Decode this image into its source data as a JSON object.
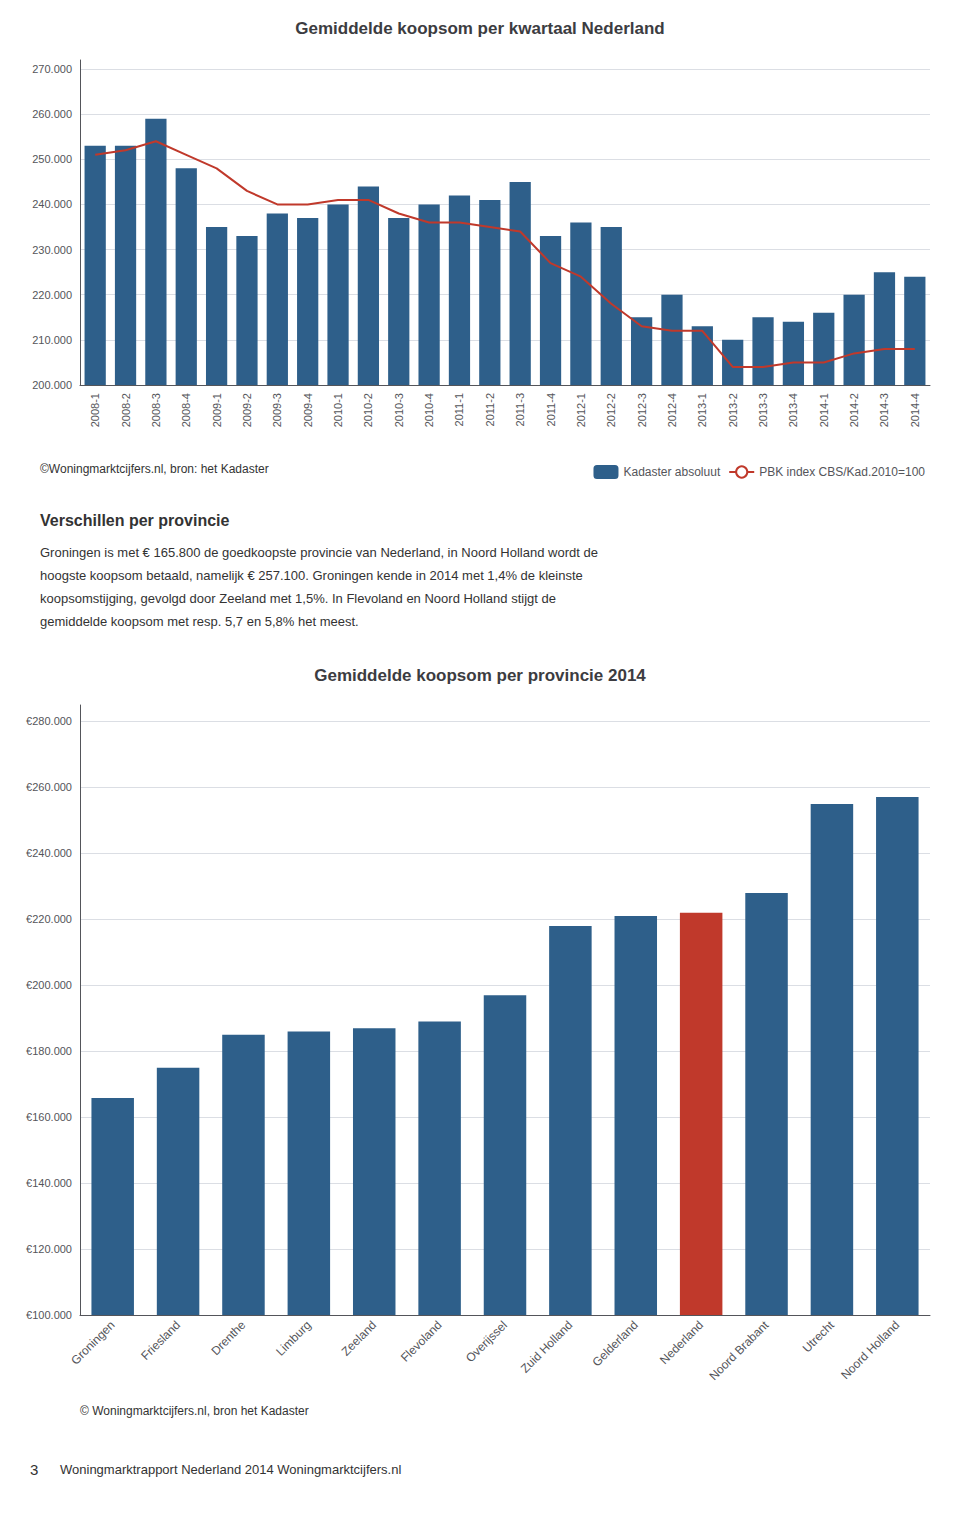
{
  "chart_data": [
    {
      "type": "bar",
      "title": "Gemiddelde koopsom per kwartaal Nederland",
      "categories": [
        "2008-1",
        "2008-2",
        "2008-3",
        "2008-4",
        "2009-1",
        "2009-2",
        "2009-3",
        "2009-4",
        "2010-1",
        "2010-2",
        "2010-3",
        "2010-4",
        "2011-1",
        "2011-2",
        "2011-3",
        "2011-4",
        "2012-1",
        "2012-2",
        "2012-3",
        "2012-4",
        "2013-1",
        "2013-2",
        "2013-3",
        "2013-4",
        "2014-1",
        "2014-2",
        "2014-3",
        "2014-4"
      ],
      "series": [
        {
          "name": "Kadaster absoluut",
          "type": "bar",
          "color": "#2E5F8A",
          "values": [
            253000,
            253000,
            259000,
            248000,
            235000,
            233000,
            238000,
            237000,
            240000,
            244000,
            237000,
            240000,
            242000,
            241000,
            245000,
            233000,
            236000,
            235000,
            215000,
            220000,
            213000,
            210000,
            215000,
            214000,
            216000,
            220000,
            225000,
            224000
          ]
        },
        {
          "name": "PBK index CBS/Kad.2010=100",
          "type": "line",
          "color": "#C0392B",
          "values": [
            251000,
            252000,
            254000,
            251000,
            248000,
            243000,
            240000,
            240000,
            241000,
            241000,
            238000,
            236000,
            236000,
            235000,
            234000,
            227000,
            224000,
            218000,
            213000,
            212000,
            212000,
            204000,
            204000,
            205000,
            205000,
            207000,
            208000,
            208000
          ]
        }
      ],
      "ylim": [
        200000,
        272000
      ],
      "yticks": [
        {
          "value": 200000,
          "label": "200.000"
        },
        {
          "value": 210000,
          "label": "210.000"
        },
        {
          "value": 220000,
          "label": "220.000"
        },
        {
          "value": 230000,
          "label": "230.000"
        },
        {
          "value": 240000,
          "label": "240.000"
        },
        {
          "value": 250000,
          "label": "250.000"
        },
        {
          "value": 260000,
          "label": "260.000"
        },
        {
          "value": 270000,
          "label": "270.000"
        }
      ],
      "grid": true,
      "legend": "right",
      "annotations": [
        "©Woningmarktcijfers.nl, bron: het Kadaster",
        "Verschillen per provincie",
        "Groningen is met € 165.800 de goedkoopste provincie van Nederland, in Noord Holland wordt de",
        "hoogste koopsom betaald, namelijk € 257.100. Groningen kende in 2014 met 1,4% de kleinste",
        "koopsomstijging, gevolgd door Zeeland met 1,5%. In Flevoland en Noord Holland stijgt de",
        "gemiddelde koopsom met resp. 5,7 en 5,8% het meest."
      ]
    },
    {
      "type": "bar",
      "title": "Gemiddelde koopsom per provincie 2014",
      "categories": [
        "Groningen",
        "Friesland",
        "Drenthe",
        "Limburg",
        "Zeeland",
        "Flevoland",
        "Overijssel",
        "Zuid Holland",
        "Gelderland",
        "Nederland",
        "Noord Brabant",
        "Utrecht",
        "Noord Holland"
      ],
      "values": [
        165800,
        175000,
        185000,
        186000,
        187000,
        189000,
        197000,
        218000,
        221000,
        222000,
        228000,
        255000,
        257100
      ],
      "colors": [
        "#2E5F8A",
        "#2E5F8A",
        "#2E5F8A",
        "#2E5F8A",
        "#2E5F8A",
        "#2E5F8A",
        "#2E5F8A",
        "#2E5F8A",
        "#2E5F8A",
        "#C0392B",
        "#2E5F8A",
        "#2E5F8A",
        "#2E5F8A"
      ],
      "ylim": [
        100000,
        285000
      ],
      "yticks": [
        {
          "value": 100000,
          "label": "€100.000"
        },
        {
          "value": 120000,
          "label": "€120.000"
        },
        {
          "value": 140000,
          "label": "€140.000"
        },
        {
          "value": 160000,
          "label": "€160.000"
        },
        {
          "value": 180000,
          "label": "€180.000"
        },
        {
          "value": 200000,
          "label": "€200.000"
        },
        {
          "value": 220000,
          "label": "€220.000"
        },
        {
          "value": 240000,
          "label": "€240.000"
        },
        {
          "value": 260000,
          "label": "€260.000"
        },
        {
          "value": 280000,
          "label": "€280.000"
        }
      ],
      "grid": true,
      "annotations": [
        "© Woningmarktcijfers.nl, bron het Kadaster",
        "3",
        "Woningmarktrapport Nederland 2014 Woningmarktcijfers.nl"
      ]
    }
  ]
}
